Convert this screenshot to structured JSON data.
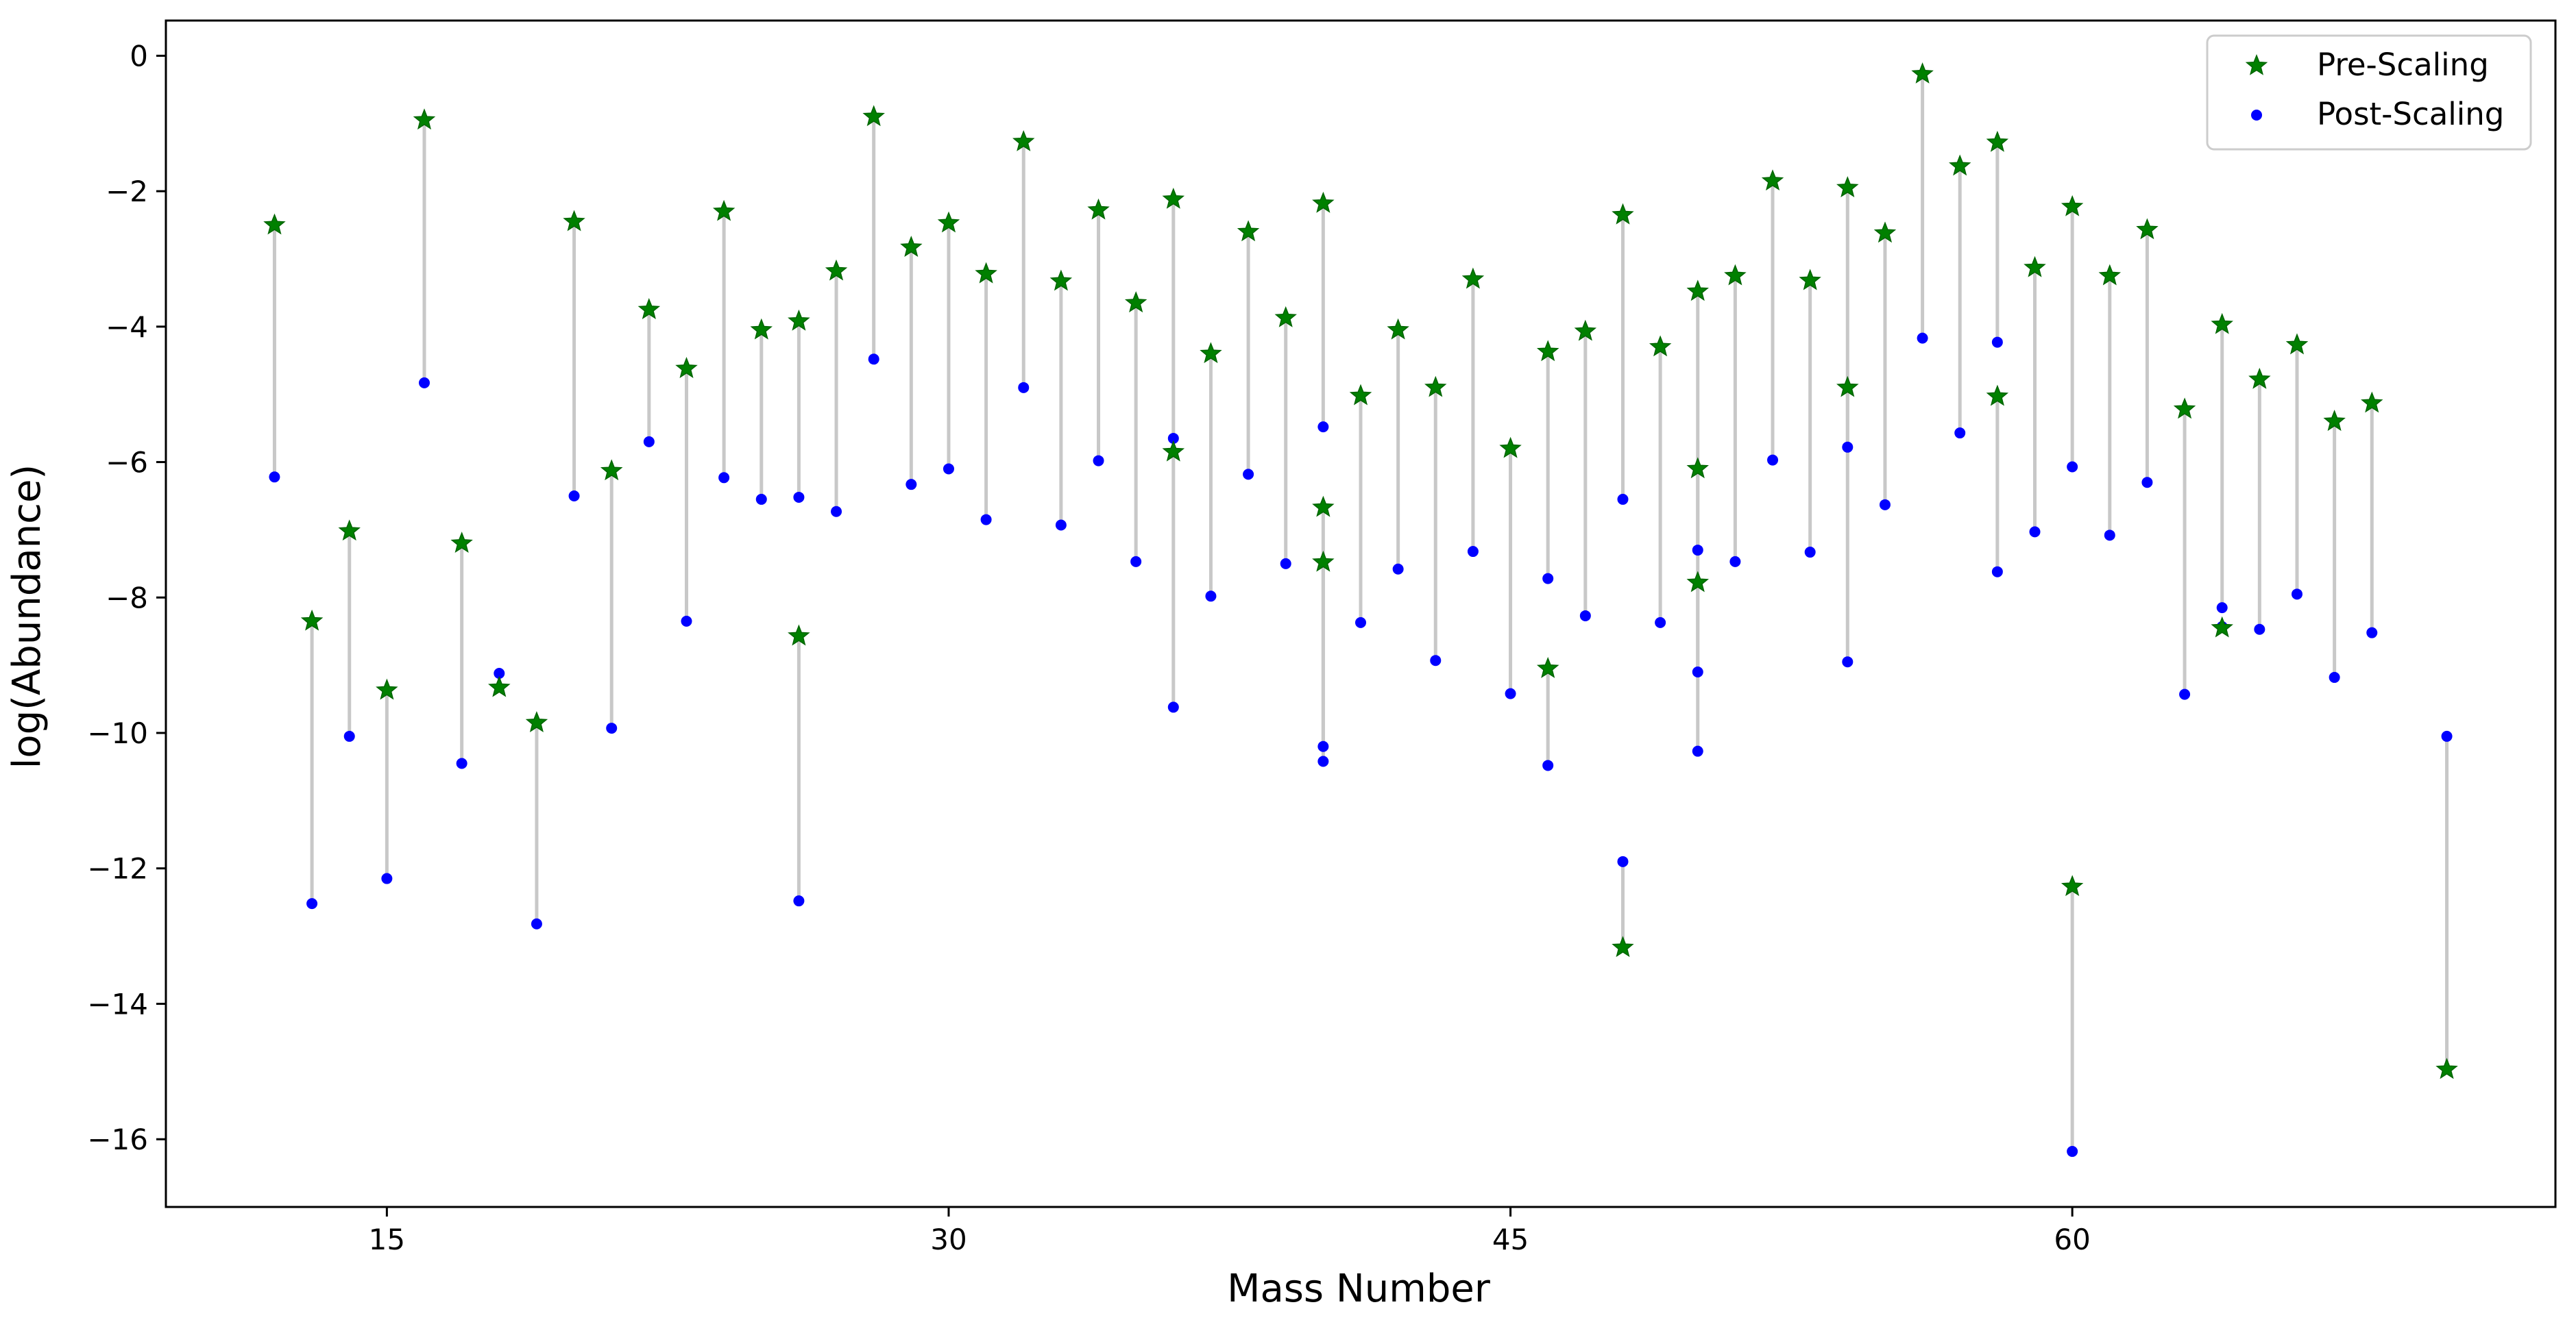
{
  "chart_data": {
    "type": "scatter",
    "title": "",
    "xlabel": "Mass Number",
    "ylabel": "log(Abundance)",
    "xlim": [
      9.1,
      72.9
    ],
    "ylim": [
      -17.0,
      0.52
    ],
    "xticks": [
      15,
      30,
      45,
      60
    ],
    "yticks": [
      0,
      -2,
      -4,
      -6,
      -8,
      -10,
      -12,
      -14,
      -16
    ],
    "grid": false,
    "legend_position": "top-right",
    "connector_color": "#c8c8c8",
    "series": [
      {
        "name": "Pre-Scaling",
        "marker": "star",
        "color": "#008000",
        "points": [
          [
            12,
            -2.5
          ],
          [
            13,
            -8.35
          ],
          [
            14,
            -7.02
          ],
          [
            15,
            -9.37
          ],
          [
            16,
            -0.95
          ],
          [
            17,
            -7.2
          ],
          [
            18,
            -9.33
          ],
          [
            19,
            -9.85
          ],
          [
            20,
            -2.45
          ],
          [
            21,
            -6.13
          ],
          [
            22,
            -3.75
          ],
          [
            23,
            -4.62
          ],
          [
            24,
            -2.3
          ],
          [
            25,
            -4.05
          ],
          [
            26,
            -3.92
          ],
          [
            26,
            -8.57
          ],
          [
            27,
            -3.18
          ],
          [
            28,
            -0.9
          ],
          [
            29,
            -2.83
          ],
          [
            30,
            -2.47
          ],
          [
            31,
            -3.22
          ],
          [
            32,
            -1.27
          ],
          [
            33,
            -3.33
          ],
          [
            34,
            -2.28
          ],
          [
            35,
            -3.65
          ],
          [
            36,
            -2.12
          ],
          [
            36,
            -5.85
          ],
          [
            37,
            -4.4
          ],
          [
            38,
            -2.6
          ],
          [
            39,
            -3.87
          ],
          [
            40,
            -2.18
          ],
          [
            40,
            -6.67
          ],
          [
            40,
            -7.48
          ],
          [
            41,
            -5.02
          ],
          [
            42,
            -4.05
          ],
          [
            43,
            -4.9
          ],
          [
            44,
            -3.3
          ],
          [
            45,
            -5.8
          ],
          [
            46,
            -4.37
          ],
          [
            46,
            -9.05
          ],
          [
            47,
            -4.07
          ],
          [
            48,
            -2.35
          ],
          [
            48,
            -13.17
          ],
          [
            49,
            -4.3
          ],
          [
            50,
            -3.48
          ],
          [
            50,
            -6.1
          ],
          [
            50,
            -7.78
          ],
          [
            51,
            -3.25
          ],
          [
            52,
            -1.85
          ],
          [
            53,
            -3.32
          ],
          [
            54,
            -1.95
          ],
          [
            54,
            -4.9
          ],
          [
            55,
            -2.62
          ],
          [
            56,
            -0.27
          ],
          [
            57,
            -1.63
          ],
          [
            58,
            -1.28
          ],
          [
            58,
            -5.03
          ],
          [
            59,
            -3.13
          ],
          [
            60,
            -2.23
          ],
          [
            60,
            -12.27
          ],
          [
            61,
            -3.25
          ],
          [
            62,
            -2.57
          ],
          [
            63,
            -5.22
          ],
          [
            64,
            -3.97
          ],
          [
            64,
            -8.45
          ],
          [
            65,
            -4.78
          ],
          [
            66,
            -4.27
          ],
          [
            67,
            -5.4
          ],
          [
            68,
            -5.13
          ],
          [
            70,
            -14.97
          ]
        ]
      },
      {
        "name": "Post-Scaling",
        "marker": "circle",
        "color": "#0000ff",
        "points": [
          [
            12,
            -6.22
          ],
          [
            13,
            -12.52
          ],
          [
            14,
            -10.05
          ],
          [
            15,
            -12.15
          ],
          [
            16,
            -4.83
          ],
          [
            17,
            -10.45
          ],
          [
            18,
            -9.12
          ],
          [
            19,
            -12.82
          ],
          [
            20,
            -6.5
          ],
          [
            21,
            -9.93
          ],
          [
            22,
            -5.7
          ],
          [
            23,
            -8.35
          ],
          [
            24,
            -6.23
          ],
          [
            25,
            -6.55
          ],
          [
            26,
            -6.52
          ],
          [
            26,
            -12.48
          ],
          [
            27,
            -6.73
          ],
          [
            28,
            -4.48
          ],
          [
            29,
            -6.33
          ],
          [
            30,
            -6.1
          ],
          [
            31,
            -6.85
          ],
          [
            32,
            -4.9
          ],
          [
            33,
            -6.93
          ],
          [
            34,
            -5.98
          ],
          [
            35,
            -7.47
          ],
          [
            36,
            -5.65
          ],
          [
            36,
            -9.62
          ],
          [
            37,
            -7.98
          ],
          [
            38,
            -6.18
          ],
          [
            39,
            -7.5
          ],
          [
            40,
            -5.48
          ],
          [
            40,
            -10.2
          ],
          [
            40,
            -10.42
          ],
          [
            41,
            -8.37
          ],
          [
            42,
            -7.58
          ],
          [
            43,
            -8.93
          ],
          [
            44,
            -7.32
          ],
          [
            45,
            -9.42
          ],
          [
            46,
            -7.72
          ],
          [
            46,
            -10.48
          ],
          [
            47,
            -8.27
          ],
          [
            48,
            -6.55
          ],
          [
            48,
            -11.9
          ],
          [
            49,
            -8.37
          ],
          [
            50,
            -7.3
          ],
          [
            50,
            -9.1
          ],
          [
            50,
            -10.27
          ],
          [
            51,
            -7.47
          ],
          [
            52,
            -5.97
          ],
          [
            53,
            -7.33
          ],
          [
            54,
            -5.78
          ],
          [
            54,
            -8.95
          ],
          [
            55,
            -6.63
          ],
          [
            56,
            -4.17
          ],
          [
            57,
            -5.57
          ],
          [
            58,
            -4.23
          ],
          [
            58,
            -7.62
          ],
          [
            59,
            -7.03
          ],
          [
            60,
            -6.07
          ],
          [
            60,
            -16.18
          ],
          [
            61,
            -7.08
          ],
          [
            62,
            -6.3
          ],
          [
            63,
            -9.43
          ],
          [
            64,
            -8.15
          ],
          [
            64,
            -8.43
          ],
          [
            65,
            -8.47
          ],
          [
            66,
            -7.95
          ],
          [
            67,
            -9.18
          ],
          [
            68,
            -8.52
          ],
          [
            70,
            -10.05
          ]
        ]
      }
    ]
  }
}
